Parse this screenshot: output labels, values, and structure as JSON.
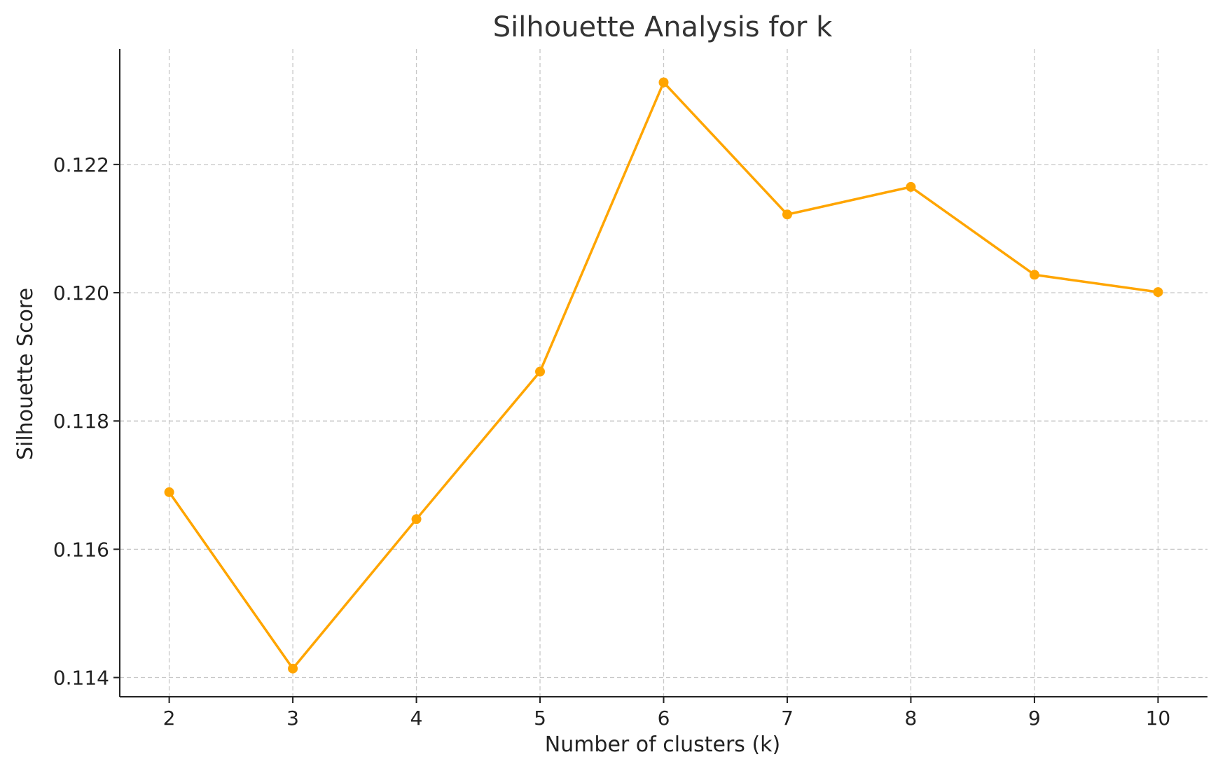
{
  "chart_data": {
    "type": "line",
    "title": "Silhouette Analysis for k",
    "xlabel": "Number of clusters (k)",
    "ylabel": "Silhouette Score",
    "x": [
      2,
      3,
      4,
      5,
      6,
      7,
      8,
      9,
      10
    ],
    "x_tick_labels": [
      "2",
      "3",
      "4",
      "5",
      "6",
      "7",
      "8",
      "9",
      "10"
    ],
    "series": [
      {
        "values": [
          0.11689,
          0.11414,
          0.11647,
          0.11877,
          0.12328,
          0.12122,
          0.12165,
          0.12028,
          0.12001
        ],
        "color": "#FFA500",
        "marker": "circle"
      }
    ],
    "y_ticks": [
      0.114,
      0.116,
      0.118,
      0.12,
      0.122
    ],
    "y_tick_labels": [
      "0.114",
      "0.116",
      "0.118",
      "0.120",
      "0.122"
    ],
    "xlim": [
      1.6,
      10.4
    ],
    "ylim": [
      0.1137,
      0.1238
    ],
    "grid": true,
    "grid_color": "#c8c8c8"
  }
}
